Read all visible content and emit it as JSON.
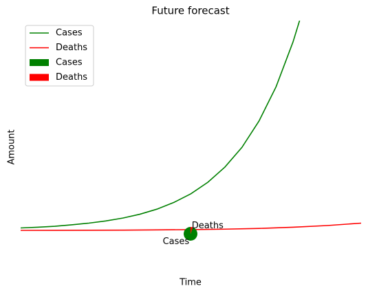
{
  "chart_data": [
    {
      "type": "line",
      "title": "Future forecast",
      "xlabel": "Time",
      "ylabel": "Amount",
      "xlim": [
        0,
        100
      ],
      "ylim": [
        -10,
        90
      ],
      "legend": "upper left",
      "series": [
        {
          "name": "Cases",
          "color": "#008000",
          "x": [
            0,
            5,
            10,
            15,
            20,
            25,
            30,
            35,
            40,
            45,
            50,
            55,
            60,
            65,
            70,
            75,
            80,
            82
          ],
          "values": [
            1.0,
            1.3,
            1.7,
            2.3,
            3.0,
            3.9,
            5.1,
            6.7,
            8.8,
            11.6,
            15.2,
            20.0,
            26.3,
            34.5,
            45.4,
            59.6,
            78.3,
            87.5
          ]
        },
        {
          "name": "Deaths",
          "color": "#ff0000",
          "x": [
            0,
            10,
            20,
            30,
            40,
            50,
            60,
            70,
            80,
            90,
            100
          ],
          "values": [
            0,
            0.02,
            0.05,
            0.1,
            0.2,
            0.3,
            0.5,
            0.8,
            1.3,
            2.0,
            3.0
          ]
        }
      ]
    },
    {
      "type": "pie",
      "categories": [
        "Cases",
        "Deaths"
      ],
      "values": [
        95,
        5
      ],
      "colors": [
        "#008000",
        "#ff0000"
      ],
      "startangle": 90
    }
  ]
}
